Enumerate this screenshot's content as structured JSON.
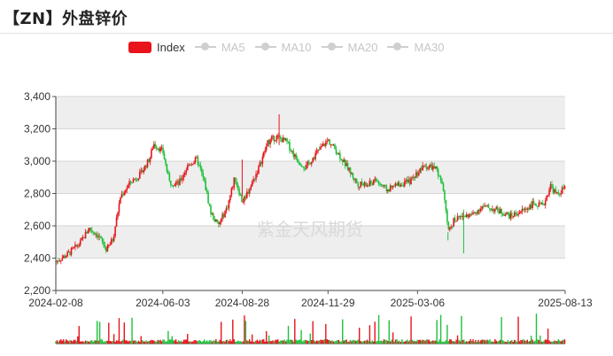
{
  "header": {
    "title": "【ZN】外盘锌价"
  },
  "legend": {
    "items": [
      {
        "label": "Index",
        "color": "#e8131b",
        "active": true
      },
      {
        "label": "MA5",
        "color": "#cccccc",
        "active": false
      },
      {
        "label": "MA10",
        "color": "#cccccc",
        "active": false
      },
      {
        "label": "MA20",
        "color": "#cccccc",
        "active": false
      },
      {
        "label": "MA30",
        "color": "#cccccc",
        "active": false
      }
    ]
  },
  "watermark": "紫金天风期货",
  "colors": {
    "up": "#e8131b",
    "down": "#1fc03a",
    "band": "#eeeeee",
    "grid": "#d6d6d6"
  },
  "chart_data": {
    "type": "candlestick",
    "title": "",
    "series_name": "Index",
    "y_axis": {
      "min": 2200,
      "max": 3400,
      "ticks": [
        "2,200",
        "2,400",
        "2,600",
        "2,800",
        "3,000",
        "3,200",
        "3,400"
      ],
      "tick_values": [
        2200,
        2400,
        2600,
        2800,
        3000,
        3200,
        3400
      ],
      "alternating_bands": true,
      "grid": true
    },
    "x_axis": {
      "start": "2024-02-08",
      "end": "2025-08-13",
      "tick_labels": [
        "2024-02-08",
        "2024-06-03",
        "2024-08-28",
        "2024-11-29",
        "2025-03-06",
        "2025-08-13"
      ]
    },
    "price_path": [
      [
        "2024-02-08",
        2380
      ],
      [
        "2024-02-20",
        2420
      ],
      [
        "2024-03-05",
        2490
      ],
      [
        "2024-03-15",
        2585
      ],
      [
        "2024-03-25",
        2540
      ],
      [
        "2024-04-03",
        2450
      ],
      [
        "2024-04-10",
        2520
      ],
      [
        "2024-04-18",
        2780
      ],
      [
        "2024-04-29",
        2870
      ],
      [
        "2024-05-10",
        2920
      ],
      [
        "2024-05-20",
        3020
      ],
      [
        "2024-05-24",
        3110
      ],
      [
        "2024-06-03",
        3060
      ],
      [
        "2024-06-10",
        2870
      ],
      [
        "2024-06-20",
        2860
      ],
      [
        "2024-07-01",
        2980
      ],
      [
        "2024-07-10",
        3010
      ],
      [
        "2024-07-18",
        2870
      ],
      [
        "2024-07-25",
        2680
      ],
      [
        "2024-08-02",
        2600
      ],
      [
        "2024-08-12",
        2720
      ],
      [
        "2024-08-20",
        2900
      ],
      [
        "2024-08-28",
        2750
      ],
      [
        "2024-09-05",
        2830
      ],
      [
        "2024-09-15",
        2960
      ],
      [
        "2024-09-25",
        3120
      ],
      [
        "2024-10-04",
        3150
      ],
      [
        "2024-10-15",
        3120
      ],
      [
        "2024-10-25",
        3020
      ],
      [
        "2024-11-05",
        2960
      ],
      [
        "2024-11-15",
        3040
      ],
      [
        "2024-11-29",
        3130
      ],
      [
        "2024-12-10",
        3050
      ],
      [
        "2024-12-20",
        2960
      ],
      [
        "2024-12-31",
        2860
      ],
      [
        "2025-01-10",
        2850
      ],
      [
        "2025-01-20",
        2880
      ],
      [
        "2025-02-01",
        2820
      ],
      [
        "2025-02-15",
        2860
      ],
      [
        "2025-02-25",
        2870
      ],
      [
        "2025-03-06",
        2930
      ],
      [
        "2025-03-14",
        2970
      ],
      [
        "2025-03-25",
        2960
      ],
      [
        "2025-04-03",
        2830
      ],
      [
        "2025-04-08",
        2560
      ],
      [
        "2025-04-15",
        2640
      ],
      [
        "2025-04-25",
        2660
      ],
      [
        "2025-05-05",
        2670
      ],
      [
        "2025-05-15",
        2720
      ],
      [
        "2025-05-30",
        2700
      ],
      [
        "2025-06-15",
        2660
      ],
      [
        "2025-06-30",
        2700
      ],
      [
        "2025-07-10",
        2740
      ],
      [
        "2025-07-20",
        2720
      ],
      [
        "2025-07-28",
        2850
      ],
      [
        "2025-08-04",
        2790
      ],
      [
        "2025-08-13",
        2840
      ]
    ],
    "spikes": [
      [
        "2024-08-28",
        3010,
        2780
      ],
      [
        "2024-10-07",
        3290,
        3100
      ],
      [
        "2025-04-08",
        2560,
        2510
      ],
      [
        "2025-04-25",
        2700,
        2430
      ]
    ],
    "volume": {
      "visible": true,
      "tick_labels": false
    }
  }
}
